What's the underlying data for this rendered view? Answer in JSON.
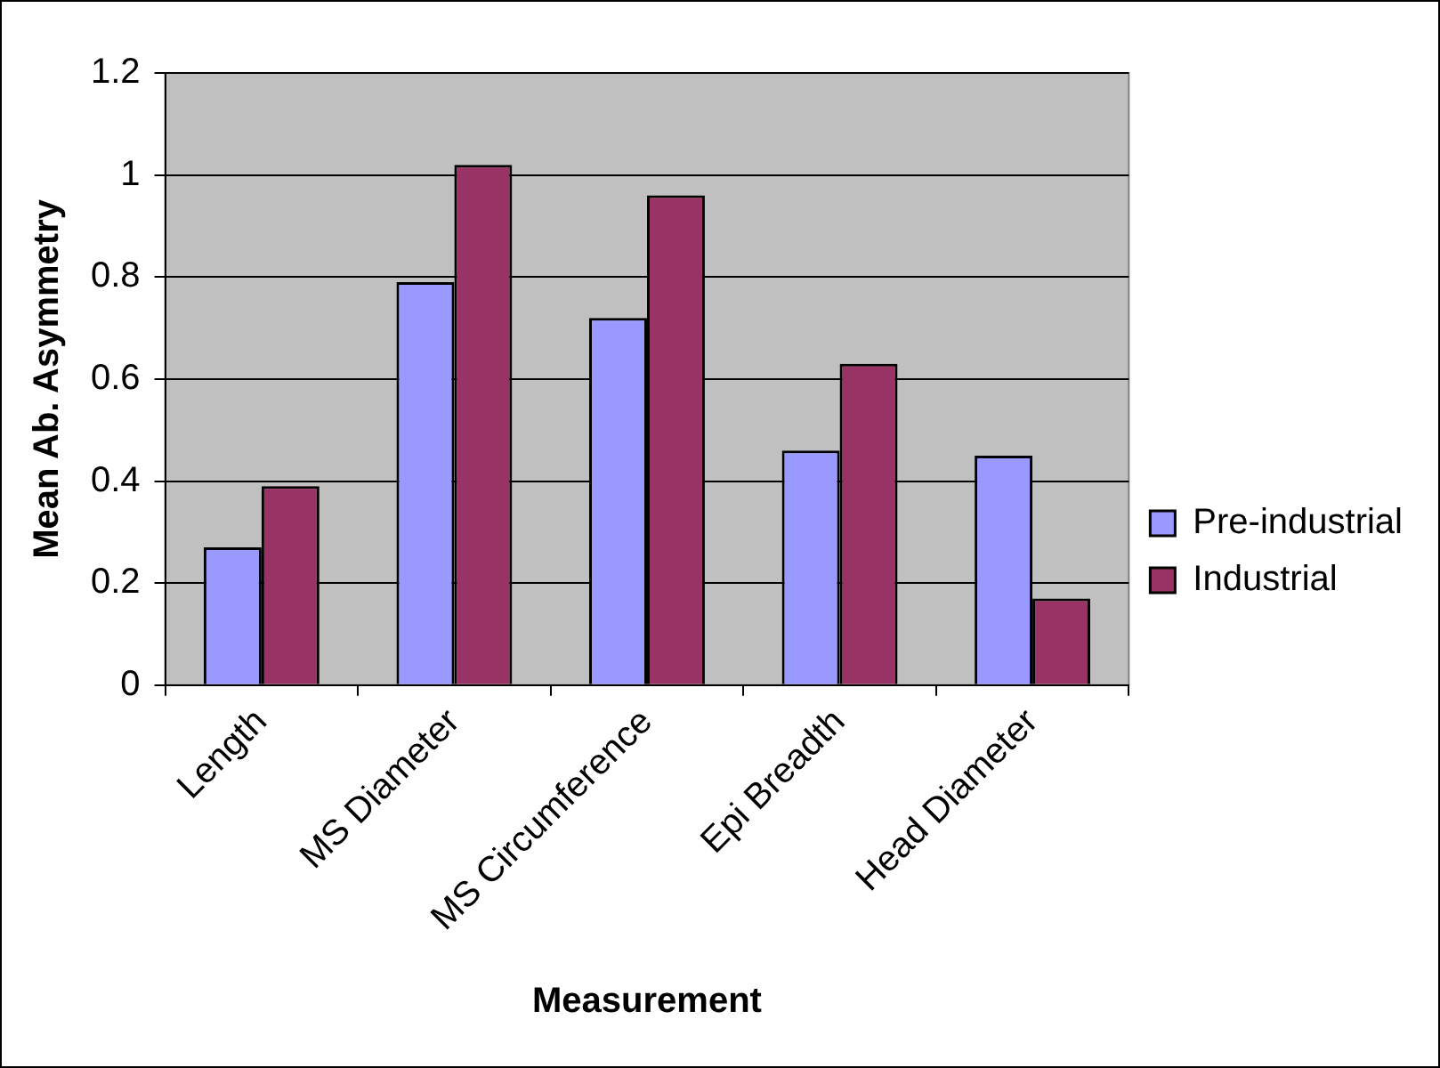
{
  "chart_data": {
    "type": "bar",
    "xlabel": "Measurement",
    "ylabel": "Mean Ab. Asymmetry",
    "categories": [
      "Length",
      "MS Diameter",
      "MS Circumference",
      "Epi Breadth",
      "Head Diameter"
    ],
    "series": [
      {
        "name": "Pre-industrial",
        "color": "#9999ff",
        "values": [
          0.27,
          0.79,
          0.72,
          0.46,
          0.45
        ]
      },
      {
        "name": "Industrial",
        "color": "#993366",
        "values": [
          0.39,
          1.02,
          0.96,
          0.63,
          0.17
        ]
      }
    ],
    "ylim": [
      0,
      1.2
    ],
    "yticks": [
      0,
      0.2,
      0.4,
      0.6,
      0.8,
      1,
      1.2
    ],
    "grid": "y",
    "legend": "right"
  }
}
